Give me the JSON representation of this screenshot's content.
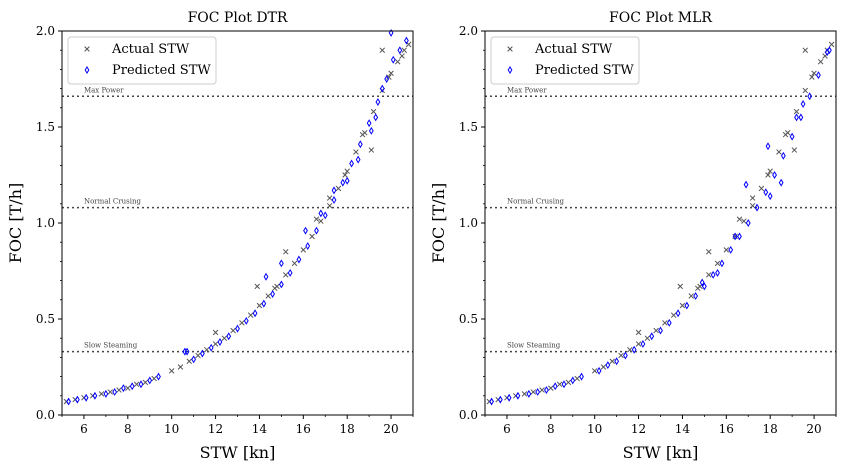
{
  "colors": {
    "actual": "#555555",
    "predicted": "#0000ff",
    "reference": "#444444"
  },
  "chart_data": [
    {
      "type": "scatter",
      "title": "FOC Plot DTR",
      "xlabel": "STW [kn]",
      "ylabel": "FOC [T/h]",
      "xlim": [
        5,
        21
      ],
      "ylim": [
        0,
        2
      ],
      "xticks": [
        "6",
        "8",
        "10",
        "12",
        "14",
        "16",
        "18",
        "20"
      ],
      "yticks": [
        "0.0",
        "0.5",
        "1.0",
        "1.5",
        "2.0"
      ],
      "legend_position": "top-left",
      "series": [
        {
          "name": "Actual STW",
          "marker": "x",
          "x": [
            5.2,
            5.6,
            6.0,
            6.4,
            6.8,
            7.2,
            7.6,
            8.0,
            8.4,
            8.8,
            9.2,
            10.0,
            10.4,
            10.8,
            11.2,
            11.6,
            12.0,
            12.4,
            12.8,
            13.2,
            13.6,
            14.0,
            14.4,
            14.8,
            15.2,
            15.6,
            16.0,
            16.4,
            16.8,
            17.2,
            17.6,
            18.0,
            18.4,
            18.8,
            19.2,
            19.6,
            20.0,
            20.3,
            20.6,
            20.8,
            12.0,
            13.9,
            15.2,
            17.2,
            19.1,
            19.6,
            16.6,
            18.7,
            19.9,
            20.5,
            17.9,
            14.7
          ],
          "y": [
            0.07,
            0.08,
            0.09,
            0.1,
            0.11,
            0.12,
            0.13,
            0.14,
            0.16,
            0.17,
            0.19,
            0.23,
            0.25,
            0.28,
            0.31,
            0.34,
            0.37,
            0.4,
            0.44,
            0.48,
            0.52,
            0.57,
            0.62,
            0.67,
            0.73,
            0.79,
            0.86,
            0.93,
            1.01,
            1.09,
            1.18,
            1.27,
            1.37,
            1.47,
            1.58,
            1.69,
            1.78,
            1.84,
            1.9,
            1.93,
            0.43,
            0.67,
            0.85,
            1.13,
            1.38,
            1.9,
            1.02,
            1.46,
            1.76,
            1.87,
            1.25,
            0.66
          ]
        },
        {
          "name": "Predicted STW",
          "marker": "diamond",
          "x": [
            5.3,
            5.7,
            6.1,
            6.5,
            7.0,
            7.4,
            7.8,
            8.2,
            8.6,
            9.0,
            9.4,
            10.6,
            11.0,
            11.4,
            11.8,
            12.2,
            12.6,
            13.0,
            13.4,
            13.8,
            14.2,
            14.6,
            15.0,
            15.4,
            15.8,
            16.2,
            16.6,
            17.0,
            17.4,
            17.8,
            18.2,
            18.6,
            19.0,
            19.4,
            19.8,
            20.1,
            20.4,
            20.7,
            10.7,
            14.3,
            16.1,
            17.4,
            18.5,
            19.3,
            19.6,
            20.0,
            15.0,
            16.8,
            18.0,
            19.1
          ],
          "y": [
            0.07,
            0.08,
            0.09,
            0.1,
            0.11,
            0.12,
            0.14,
            0.15,
            0.16,
            0.18,
            0.2,
            0.33,
            0.29,
            0.32,
            0.35,
            0.38,
            0.41,
            0.45,
            0.49,
            0.53,
            0.58,
            0.63,
            0.68,
            0.74,
            0.81,
            0.88,
            0.96,
            1.04,
            1.12,
            1.21,
            1.31,
            1.41,
            1.52,
            1.63,
            1.75,
            1.85,
            1.9,
            1.95,
            0.33,
            0.72,
            0.96,
            1.17,
            1.33,
            1.55,
            1.7,
            1.99,
            0.79,
            1.05,
            1.22,
            1.48
          ]
        }
      ],
      "reference_lines": [
        {
          "y": 1.66,
          "label": "Max Power"
        },
        {
          "y": 1.08,
          "label": "Normal Crusing"
        },
        {
          "y": 0.33,
          "label": "Slow Steaming"
        }
      ]
    },
    {
      "type": "scatter",
      "title": "FOC Plot MLR",
      "xlabel": "STW [kn]",
      "ylabel": "FOC [T/h]",
      "xlim": [
        5,
        21
      ],
      "ylim": [
        0,
        2
      ],
      "xticks": [
        "6",
        "8",
        "10",
        "12",
        "14",
        "16",
        "18",
        "20"
      ],
      "yticks": [
        "0.0",
        "0.5",
        "1.0",
        "1.5",
        "2.0"
      ],
      "legend_position": "top-left",
      "series": [
        {
          "name": "Actual STW",
          "marker": "x",
          "x": [
            5.2,
            5.6,
            6.0,
            6.4,
            6.8,
            7.2,
            7.6,
            8.0,
            8.4,
            8.8,
            9.2,
            10.0,
            10.4,
            10.8,
            11.2,
            11.6,
            12.0,
            12.4,
            12.8,
            13.2,
            13.6,
            14.0,
            14.4,
            14.8,
            15.2,
            15.6,
            16.0,
            16.4,
            16.8,
            17.2,
            17.6,
            18.0,
            18.4,
            18.8,
            19.2,
            19.6,
            20.0,
            20.3,
            20.6,
            20.8,
            12.0,
            13.9,
            15.2,
            17.2,
            19.1,
            19.6,
            16.6,
            18.7,
            19.9,
            20.5,
            17.9,
            14.7
          ],
          "y": [
            0.07,
            0.08,
            0.09,
            0.1,
            0.11,
            0.12,
            0.13,
            0.14,
            0.16,
            0.17,
            0.19,
            0.23,
            0.25,
            0.28,
            0.31,
            0.34,
            0.37,
            0.4,
            0.44,
            0.48,
            0.52,
            0.57,
            0.62,
            0.67,
            0.73,
            0.79,
            0.86,
            0.93,
            1.01,
            1.09,
            1.18,
            1.27,
            1.37,
            1.47,
            1.58,
            1.69,
            1.78,
            1.84,
            1.9,
            1.93,
            0.43,
            0.67,
            0.85,
            1.13,
            1.38,
            1.9,
            1.02,
            1.46,
            1.76,
            1.87,
            1.25,
            0.66
          ]
        },
        {
          "name": "Predicted STW",
          "marker": "diamond",
          "x": [
            5.3,
            5.7,
            6.1,
            6.5,
            7.0,
            7.4,
            7.8,
            8.2,
            8.6,
            9.0,
            9.4,
            10.2,
            10.6,
            11.0,
            11.4,
            11.8,
            12.2,
            12.6,
            13.0,
            13.4,
            13.8,
            14.2,
            14.6,
            15.0,
            15.4,
            15.8,
            16.2,
            16.6,
            17.0,
            17.4,
            17.8,
            18.2,
            18.6,
            19.0,
            19.4,
            19.8,
            20.2,
            20.6,
            16.4,
            16.9,
            15.6,
            17.9,
            18.0,
            18.5,
            19.2,
            19.5,
            20.7,
            14.9
          ],
          "y": [
            0.07,
            0.08,
            0.09,
            0.1,
            0.11,
            0.12,
            0.13,
            0.15,
            0.16,
            0.18,
            0.2,
            0.23,
            0.26,
            0.28,
            0.31,
            0.34,
            0.37,
            0.41,
            0.44,
            0.48,
            0.53,
            0.57,
            0.62,
            0.67,
            0.73,
            0.79,
            0.86,
            0.93,
            1.0,
            1.08,
            1.16,
            1.25,
            1.35,
            1.45,
            1.55,
            1.66,
            1.77,
            1.89,
            0.93,
            1.2,
            0.74,
            1.4,
            1.14,
            1.21,
            1.55,
            1.62,
            1.9,
            0.69
          ]
        }
      ],
      "reference_lines": [
        {
          "y": 1.66,
          "label": "Max Power"
        },
        {
          "y": 1.08,
          "label": "Normal Crusing"
        },
        {
          "y": 0.33,
          "label": "Slow Steaming"
        }
      ]
    }
  ]
}
